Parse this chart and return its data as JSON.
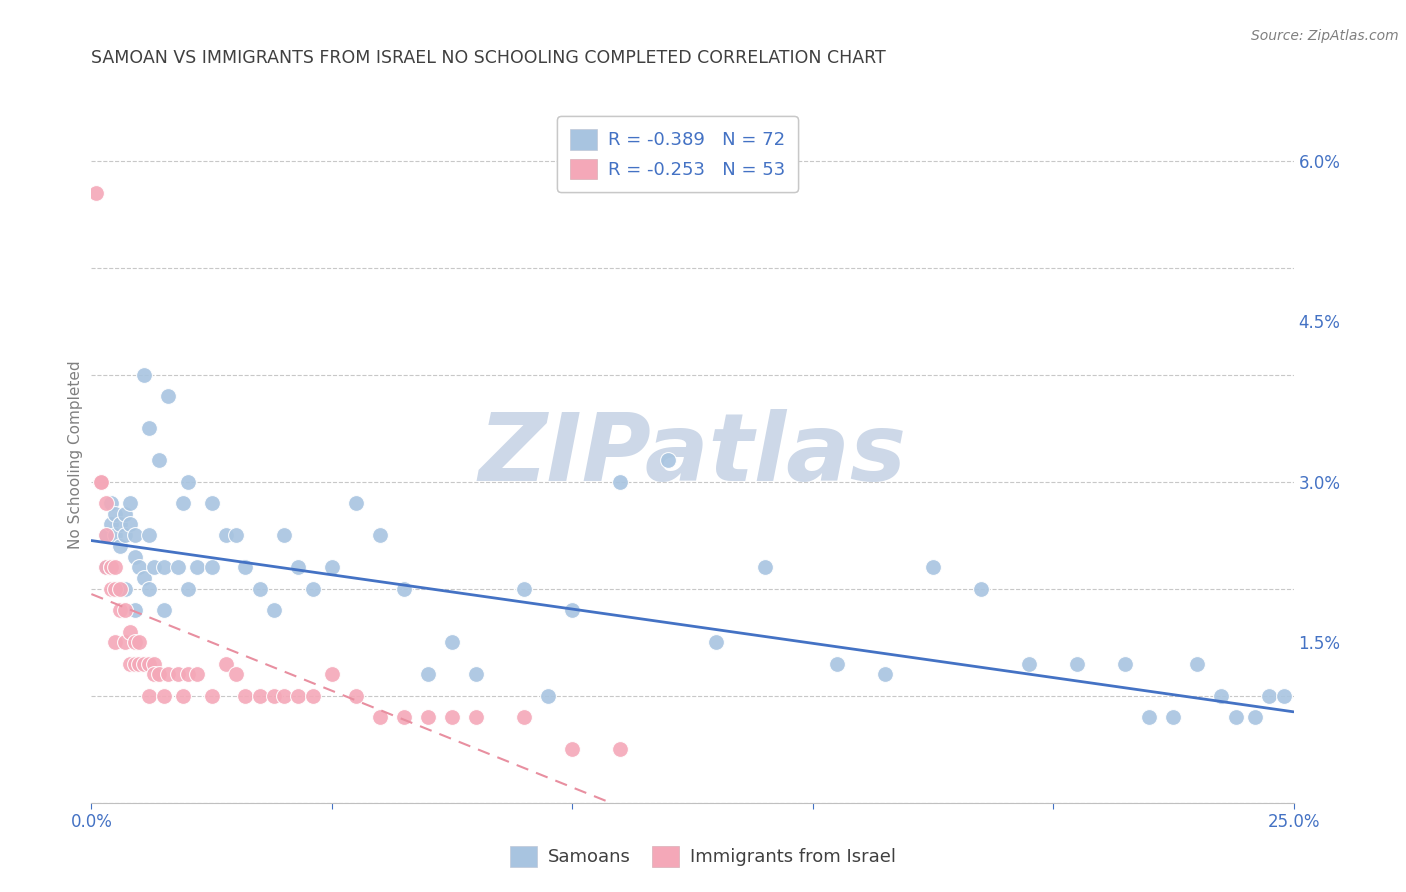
{
  "title": "SAMOAN VS IMMIGRANTS FROM ISRAEL NO SCHOOLING COMPLETED CORRELATION CHART",
  "source": "Source: ZipAtlas.com",
  "ylabel": "No Schooling Completed",
  "xlim": [
    0.0,
    0.25
  ],
  "ylim": [
    0.0,
    0.065
  ],
  "xticks": [
    0.0,
    0.05,
    0.1,
    0.15,
    0.2,
    0.25
  ],
  "xtick_labels": [
    "0.0%",
    "",
    "",
    "",
    "",
    "25.0%"
  ],
  "yticks": [
    0.0,
    0.015,
    0.03,
    0.045,
    0.06
  ],
  "ytick_labels": [
    "",
    "1.5%",
    "3.0%",
    "4.5%",
    "6.0%"
  ],
  "legend_entries": [
    {
      "label": "R = -0.389   N = 72",
      "color": "#a8c4e0"
    },
    {
      "label": "R = -0.253   N = 53",
      "color": "#f4a8b8"
    }
  ],
  "legend_bottom": [
    "Samoans",
    "Immigrants from Israel"
  ],
  "samoans_x": [
    0.003,
    0.004,
    0.004,
    0.005,
    0.005,
    0.006,
    0.006,
    0.007,
    0.007,
    0.008,
    0.008,
    0.009,
    0.009,
    0.01,
    0.011,
    0.011,
    0.012,
    0.012,
    0.013,
    0.014,
    0.015,
    0.016,
    0.018,
    0.019,
    0.02,
    0.022,
    0.025,
    0.028,
    0.03,
    0.032,
    0.035,
    0.038,
    0.04,
    0.043,
    0.046,
    0.05,
    0.055,
    0.06,
    0.065,
    0.07,
    0.075,
    0.08,
    0.09,
    0.095,
    0.1,
    0.11,
    0.12,
    0.13,
    0.14,
    0.155,
    0.165,
    0.175,
    0.185,
    0.195,
    0.205,
    0.215,
    0.22,
    0.225,
    0.23,
    0.235,
    0.238,
    0.242,
    0.245,
    0.248,
    0.003,
    0.005,
    0.007,
    0.009,
    0.012,
    0.015,
    0.02,
    0.025
  ],
  "samoans_y": [
    0.025,
    0.026,
    0.028,
    0.025,
    0.027,
    0.024,
    0.026,
    0.025,
    0.027,
    0.026,
    0.028,
    0.023,
    0.025,
    0.022,
    0.021,
    0.04,
    0.035,
    0.025,
    0.022,
    0.032,
    0.022,
    0.038,
    0.022,
    0.028,
    0.03,
    0.022,
    0.022,
    0.025,
    0.025,
    0.022,
    0.02,
    0.018,
    0.025,
    0.022,
    0.02,
    0.022,
    0.028,
    0.025,
    0.02,
    0.012,
    0.015,
    0.012,
    0.02,
    0.01,
    0.018,
    0.03,
    0.032,
    0.015,
    0.022,
    0.013,
    0.012,
    0.022,
    0.02,
    0.013,
    0.013,
    0.013,
    0.008,
    0.008,
    0.013,
    0.01,
    0.008,
    0.008,
    0.01,
    0.01,
    0.022,
    0.02,
    0.02,
    0.018,
    0.02,
    0.018,
    0.02,
    0.028
  ],
  "israel_x": [
    0.001,
    0.002,
    0.002,
    0.003,
    0.003,
    0.003,
    0.004,
    0.004,
    0.004,
    0.005,
    0.005,
    0.005,
    0.006,
    0.006,
    0.007,
    0.007,
    0.008,
    0.008,
    0.009,
    0.009,
    0.01,
    0.01,
    0.011,
    0.012,
    0.012,
    0.013,
    0.013,
    0.014,
    0.015,
    0.016,
    0.018,
    0.019,
    0.02,
    0.022,
    0.025,
    0.028,
    0.03,
    0.032,
    0.035,
    0.038,
    0.04,
    0.043,
    0.046,
    0.05,
    0.055,
    0.06,
    0.065,
    0.07,
    0.075,
    0.08,
    0.09,
    0.1,
    0.11
  ],
  "israel_y": [
    0.057,
    0.03,
    0.03,
    0.028,
    0.025,
    0.022,
    0.022,
    0.022,
    0.02,
    0.022,
    0.02,
    0.015,
    0.018,
    0.02,
    0.018,
    0.015,
    0.016,
    0.013,
    0.015,
    0.013,
    0.013,
    0.015,
    0.013,
    0.013,
    0.01,
    0.013,
    0.012,
    0.012,
    0.01,
    0.012,
    0.012,
    0.01,
    0.012,
    0.012,
    0.01,
    0.013,
    0.012,
    0.01,
    0.01,
    0.01,
    0.01,
    0.01,
    0.01,
    0.012,
    0.01,
    0.008,
    0.008,
    0.008,
    0.008,
    0.008,
    0.008,
    0.005,
    0.005
  ],
  "blue_line_x": [
    0.0,
    0.25
  ],
  "blue_line_y": [
    0.0245,
    0.0085
  ],
  "pink_line_x": [
    0.0,
    0.108
  ],
  "pink_line_y": [
    0.0195,
    0.0
  ],
  "samoan_color": "#a8c4e0",
  "israel_color": "#f4a8b8",
  "blue_line_color": "#4472c4",
  "pink_line_color": "#e88fa0",
  "title_color": "#404040",
  "tick_label_color": "#4472c4",
  "source_color": "#808080",
  "ylabel_color": "#808080",
  "background_color": "#ffffff",
  "grid_color": "#c8c8c8",
  "watermark_text": "ZIPatlas",
  "watermark_color": "#cdd8e8"
}
